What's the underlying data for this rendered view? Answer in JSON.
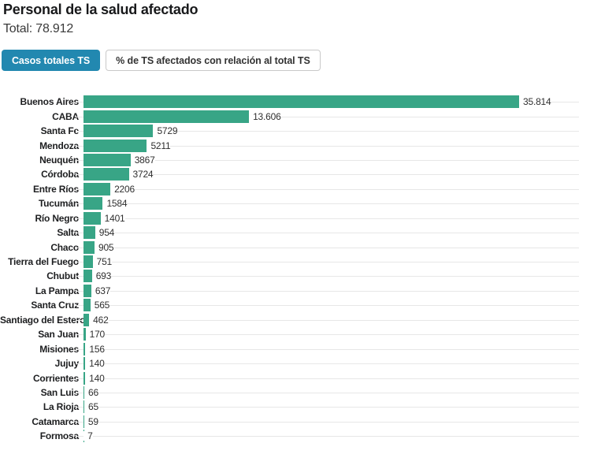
{
  "header": {
    "title": "Personal de la salud afectado",
    "total_line": "Total: 78.912"
  },
  "tabs": [
    {
      "label": "Casos totales TS",
      "active": true
    },
    {
      "label": "% de TS afectados con relación al total TS",
      "active": false
    }
  ],
  "colors": {
    "bar": "#38a586",
    "active_tab_bg": "#2288b0",
    "grid": "#e7e7e7"
  },
  "chart_data": {
    "type": "bar",
    "orientation": "horizontal",
    "title": "Personal de la salud afectado",
    "total": 78912,
    "xlim": [
      0,
      35814
    ],
    "grid": true,
    "categories": [
      "Buenos Aires",
      "CABA",
      "Santa Fe",
      "Mendoza",
      "Neuquén",
      "Córdoba",
      "Entre Ríos",
      "Tucumán",
      "Río Negro",
      "Salta",
      "Chaco",
      "Tierra del Fuego",
      "Chubut",
      "La Pampa",
      "Santa Cruz",
      "Santiago del Estero",
      "San Juan",
      "Misiones",
      "Jujuy",
      "Corrientes",
      "San Luis",
      "La Rioja",
      "Catamarca",
      "Formosa"
    ],
    "values": [
      35814,
      13606,
      5729,
      5211,
      3867,
      3724,
      2206,
      1584,
      1401,
      954,
      905,
      751,
      693,
      637,
      565,
      462,
      170,
      156,
      140,
      140,
      66,
      65,
      59,
      7
    ],
    "value_labels": [
      "35.814",
      "13.606",
      "5729",
      "5211",
      "3867",
      "3724",
      "2206",
      "1584",
      "1401",
      "954",
      "905",
      "751",
      "693",
      "637",
      "565",
      "462",
      "170",
      "156",
      "140",
      "140",
      "66",
      "65",
      "59",
      "7"
    ],
    "max_value": 35814
  }
}
